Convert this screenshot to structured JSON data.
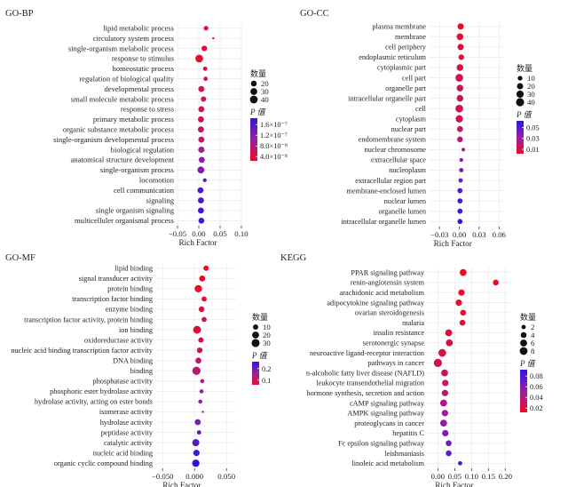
{
  "colors": {
    "low_p": "#ee0b1e",
    "mid_p": "#9a1fa0",
    "high_p": "#2b17e0",
    "grid": "#ebebeb",
    "text": "#222222"
  },
  "chart_data": [
    {
      "id": "bp",
      "type": "scatter",
      "panel_title": "GO-BP",
      "xlabel": "Rich Factor",
      "xlim": [
        -0.05,
        0.1
      ],
      "xticks": [
        -0.05,
        0.0,
        0.05,
        0.1
      ],
      "xtick_labels": [
        "−0.05",
        "0.00",
        "0.05",
        "0.10"
      ],
      "size_legend_title": "数量",
      "size_legend": [
        {
          "value": 20,
          "label": "20"
        },
        {
          "value": 30,
          "label": "30"
        },
        {
          "value": 40,
          "label": "40"
        }
      ],
      "color_legend_title": "P 值",
      "color_legend_labels": [
        "1.6×10⁻⁷",
        "1.2×10⁻⁷",
        "8.0×10⁻⁸",
        "4.0×10⁻⁸"
      ],
      "pmin": 0.0,
      "pmax": 1.8e-07,
      "size_min": 5,
      "size_max": 50,
      "points": [
        {
          "term": "lipid metabolic process",
          "x": 0.017,
          "count": 12,
          "p": 1e-08
        },
        {
          "term": "circulatory system process",
          "x": 0.034,
          "count": 5,
          "p": 3e-08
        },
        {
          "term": "single-organism melabolic process",
          "x": 0.013,
          "count": 18,
          "p": 2e-08
        },
        {
          "term": "response to stimulus",
          "x": 0.001,
          "count": 40,
          "p": 1e-08
        },
        {
          "term": "homeostatic process",
          "x": 0.015,
          "count": 10,
          "p": 3e-08
        },
        {
          "term": "regulation of biological quality",
          "x": 0.016,
          "count": 10,
          "p": 3e-08
        },
        {
          "term": "developmental process",
          "x": 0.006,
          "count": 22,
          "p": 3e-08
        },
        {
          "term": "small molecule metabolic process",
          "x": 0.011,
          "count": 16,
          "p": 3e-08
        },
        {
          "term": "response to stress",
          "x": 0.006,
          "count": 22,
          "p": 3e-08
        },
        {
          "term": "primary metabolic process",
          "x": 0.005,
          "count": 22,
          "p": 3e-08
        },
        {
          "term": "organic substance metabolic process",
          "x": 0.005,
          "count": 22,
          "p": 4e-08
        },
        {
          "term": "single-organism developmental process",
          "x": 0.006,
          "count": 22,
          "p": 5e-08
        },
        {
          "term": "biological regulation",
          "x": 0.006,
          "count": 24,
          "p": 8e-08
        },
        {
          "term": "anatomical structure development",
          "x": 0.007,
          "count": 22,
          "p": 1e-07
        },
        {
          "term": "single-organism process",
          "x": 0.005,
          "count": 30,
          "p": 1.1e-07
        },
        {
          "term": "locomotion",
          "x": 0.014,
          "count": 8,
          "p": 1.5e-07
        },
        {
          "term": "cell communication",
          "x": 0.004,
          "count": 22,
          "p": 1.55e-07
        },
        {
          "term": "signaling",
          "x": 0.005,
          "count": 22,
          "p": 1.6e-07
        },
        {
          "term": "single organism signaling",
          "x": 0.005,
          "count": 22,
          "p": 1.62e-07
        },
        {
          "term": "multicelluler organismal process",
          "x": 0.006,
          "count": 20,
          "p": 1.65e-07
        }
      ]
    },
    {
      "id": "cc",
      "type": "scatter",
      "panel_title": "GO-CC",
      "xlabel": "Rich Factor",
      "xlim": [
        -0.045,
        0.065
      ],
      "xticks": [
        -0.03,
        0.0,
        0.03,
        0.06
      ],
      "xtick_labels": [
        "−0.03",
        "0.00",
        "0.03",
        "0.06"
      ],
      "size_legend_title": "数量",
      "size_legend": [
        {
          "value": 10,
          "label": "10"
        },
        {
          "value": 20,
          "label": "20"
        },
        {
          "value": 30,
          "label": "30"
        },
        {
          "value": 40,
          "label": "40"
        }
      ],
      "color_legend_title": "P 值",
      "color_legend_labels": [
        "0.05",
        "0.03",
        "0.01"
      ],
      "pmin": 0.0,
      "pmax": 0.06,
      "size_min": 3,
      "size_max": 45,
      "points": [
        {
          "term": "plasma membrane",
          "x": 0.002,
          "count": 20,
          "p": 0.003
        },
        {
          "term": "membrane",
          "x": 0.001,
          "count": 24,
          "p": 0.004
        },
        {
          "term": "cell periphery",
          "x": 0.002,
          "count": 20,
          "p": 0.005
        },
        {
          "term": "endoplasmic reticulum",
          "x": 0.003,
          "count": 15,
          "p": 0.006
        },
        {
          "term": "cytoplasmic part",
          "x": 0.001,
          "count": 24,
          "p": 0.008
        },
        {
          "term": "cell part",
          "x": 0.0,
          "count": 35,
          "p": 0.01
        },
        {
          "term": "organelle part",
          "x": 0.001,
          "count": 24,
          "p": 0.012
        },
        {
          "term": "intracellular organelle part",
          "x": 0.001,
          "count": 24,
          "p": 0.013
        },
        {
          "term": "cell",
          "x": 0.0,
          "count": 35,
          "p": 0.011
        },
        {
          "term": "cytoplasm",
          "x": 0.0,
          "count": 30,
          "p": 0.012
        },
        {
          "term": "nuclear part",
          "x": 0.001,
          "count": 18,
          "p": 0.016
        },
        {
          "term": "endomembrane system",
          "x": 0.001,
          "count": 16,
          "p": 0.02
        },
        {
          "term": "nuclear chromosome",
          "x": 0.006,
          "count": 5,
          "p": 0.025
        },
        {
          "term": "extracellular space",
          "x": 0.003,
          "count": 6,
          "p": 0.032
        },
        {
          "term": "nucleoplasm",
          "x": 0.003,
          "count": 8,
          "p": 0.038
        },
        {
          "term": "extracellular region part",
          "x": 0.002,
          "count": 8,
          "p": 0.042
        },
        {
          "term": "membrane-enclosed lumen",
          "x": 0.001,
          "count": 12,
          "p": 0.05
        },
        {
          "term": "nuclear lumen",
          "x": 0.001,
          "count": 12,
          "p": 0.053
        },
        {
          "term": "organelle lumen",
          "x": 0.001,
          "count": 12,
          "p": 0.055
        },
        {
          "term": "intracellular organelle lumen",
          "x": 0.001,
          "count": 12,
          "p": 0.057
        }
      ]
    },
    {
      "id": "mf",
      "type": "scatter",
      "panel_title": "GO-MF",
      "xlabel": "Rich Factor",
      "xlim": [
        -0.06,
        0.065
      ],
      "xticks": [
        -0.05,
        0.0,
        0.05
      ],
      "xtick_labels": [
        "−0.050",
        "0.000",
        "0.050"
      ],
      "size_legend_title": "数量",
      "size_legend": [
        {
          "value": 10,
          "label": "10"
        },
        {
          "value": 20,
          "label": "20"
        },
        {
          "value": 30,
          "label": "30"
        }
      ],
      "color_legend_title": "P 值",
      "color_legend_labels": [
        "0.2",
        "0.1"
      ],
      "pmin": 0.0,
      "pmax": 0.3,
      "size_min": 2,
      "size_max": 35,
      "points": [
        {
          "term": "lipid binding",
          "x": 0.018,
          "count": 10,
          "p": 0.005
        },
        {
          "term": "signal transducer activity",
          "x": 0.012,
          "count": 14,
          "p": 0.01
        },
        {
          "term": "protein binding",
          "x": 0.006,
          "count": 24,
          "p": 0.01
        },
        {
          "term": "transcription factor binding",
          "x": 0.015,
          "count": 9,
          "p": 0.02
        },
        {
          "term": "enzyme binding",
          "x": 0.011,
          "count": 12,
          "p": 0.03
        },
        {
          "term": "transcription factor activity, protein binding",
          "x": 0.015,
          "count": 9,
          "p": 0.04
        },
        {
          "term": "ion binding",
          "x": 0.004,
          "count": 28,
          "p": 0.04
        },
        {
          "term": "oxidoreductase activity",
          "x": 0.01,
          "count": 10,
          "p": 0.06
        },
        {
          "term": "nucleic acid binding transcription factor activity",
          "x": 0.008,
          "count": 12,
          "p": 0.07
        },
        {
          "term": "DNA binding",
          "x": 0.006,
          "count": 14,
          "p": 0.09
        },
        {
          "term": "binding",
          "x": 0.003,
          "count": 32,
          "p": 0.1
        },
        {
          "term": "phosphatase activity",
          "x": 0.012,
          "count": 5,
          "p": 0.12
        },
        {
          "term": "phosphoric ester hydrolase activity",
          "x": 0.011,
          "count": 5,
          "p": 0.14
        },
        {
          "term": "hydrolase activity, acting on ester bonds",
          "x": 0.009,
          "count": 5,
          "p": 0.16
        },
        {
          "term": "isomerase activity",
          "x": 0.013,
          "count": 2,
          "p": 0.18
        },
        {
          "term": "hydrolase activity",
          "x": 0.005,
          "count": 14,
          "p": 0.2
        },
        {
          "term": "peptidase activity",
          "x": 0.007,
          "count": 6,
          "p": 0.22
        },
        {
          "term": "catalytic activity",
          "x": 0.002,
          "count": 22,
          "p": 0.25
        },
        {
          "term": "nucleic acid binding",
          "x": 0.003,
          "count": 16,
          "p": 0.28
        },
        {
          "term": "organic cyclic compound binding",
          "x": 0.002,
          "count": 24,
          "p": 0.3
        }
      ]
    },
    {
      "id": "kegg",
      "type": "scatter",
      "panel_title": "KEGG",
      "xlabel": "Rich Factor",
      "xlim": [
        -0.03,
        0.215
      ],
      "xticks": [
        0.0,
        0.05,
        0.1,
        0.15,
        0.2
      ],
      "xtick_labels": [
        "0.00",
        "0.05",
        "0.10",
        "0.15",
        "0.20"
      ],
      "size_legend_title": "数量",
      "size_legend": [
        {
          "value": 2,
          "label": "2"
        },
        {
          "value": 4,
          "label": "4"
        },
        {
          "value": 6,
          "label": "6"
        },
        {
          "value": 8,
          "label": "8"
        }
      ],
      "color_legend_title": "P 值",
      "color_legend_labels": [
        "0.08",
        "0.06",
        "0.04",
        "0.02"
      ],
      "pmin": 0.0,
      "pmax": 0.09,
      "size_min": 1,
      "size_max": 10,
      "points": [
        {
          "term": "PPAR signaling pathway",
          "x": 0.075,
          "count": 6,
          "p": 0.001
        },
        {
          "term": "renin-angiotensin system",
          "x": 0.172,
          "count": 4,
          "p": 0.002
        },
        {
          "term": "arachidonic acid metabolism",
          "x": 0.07,
          "count": 5,
          "p": 0.004
        },
        {
          "term": "adipocytokine signaling pathway",
          "x": 0.062,
          "count": 5,
          "p": 0.005
        },
        {
          "term": "ovarian steroidogenesis",
          "x": 0.075,
          "count": 4,
          "p": 0.007
        },
        {
          "term": "malaria",
          "x": 0.073,
          "count": 4,
          "p": 0.008
        },
        {
          "term": "insulin resistance",
          "x": 0.032,
          "count": 6,
          "p": 0.01
        },
        {
          "term": "serotonergic synapse",
          "x": 0.034,
          "count": 6,
          "p": 0.012
        },
        {
          "term": "neuroactive ligand-receptor interaction",
          "x": 0.013,
          "count": 8,
          "p": 0.014
        },
        {
          "term": "pathways in cancer",
          "x": 0.0,
          "count": 9,
          "p": 0.016
        },
        {
          "term": "n-alcoholic fatty liver disease (NAFLD)",
          "x": 0.02,
          "count": 6,
          "p": 0.02
        },
        {
          "term": "leukocyte transendothelial migration",
          "x": 0.022,
          "count": 5,
          "p": 0.025
        },
        {
          "term": "hormone synthesis, secretion and action",
          "x": 0.021,
          "count": 5,
          "p": 0.03
        },
        {
          "term": "cAMP signaling pathway",
          "x": 0.017,
          "count": 6,
          "p": 0.035
        },
        {
          "term": "AMPK signaling pathway",
          "x": 0.021,
          "count": 5,
          "p": 0.04
        },
        {
          "term": "proteoglycans in cancer",
          "x": 0.017,
          "count": 6,
          "p": 0.048
        },
        {
          "term": "hepatitis C",
          "x": 0.022,
          "count": 5,
          "p": 0.055
        },
        {
          "term": "Fc epsilon signaling pathway",
          "x": 0.032,
          "count": 4,
          "p": 0.062
        },
        {
          "term": "leishmaniasis",
          "x": 0.032,
          "count": 4,
          "p": 0.07
        },
        {
          "term": "linoleic acid metabolism",
          "x": 0.066,
          "count": 2,
          "p": 0.08
        }
      ]
    }
  ]
}
